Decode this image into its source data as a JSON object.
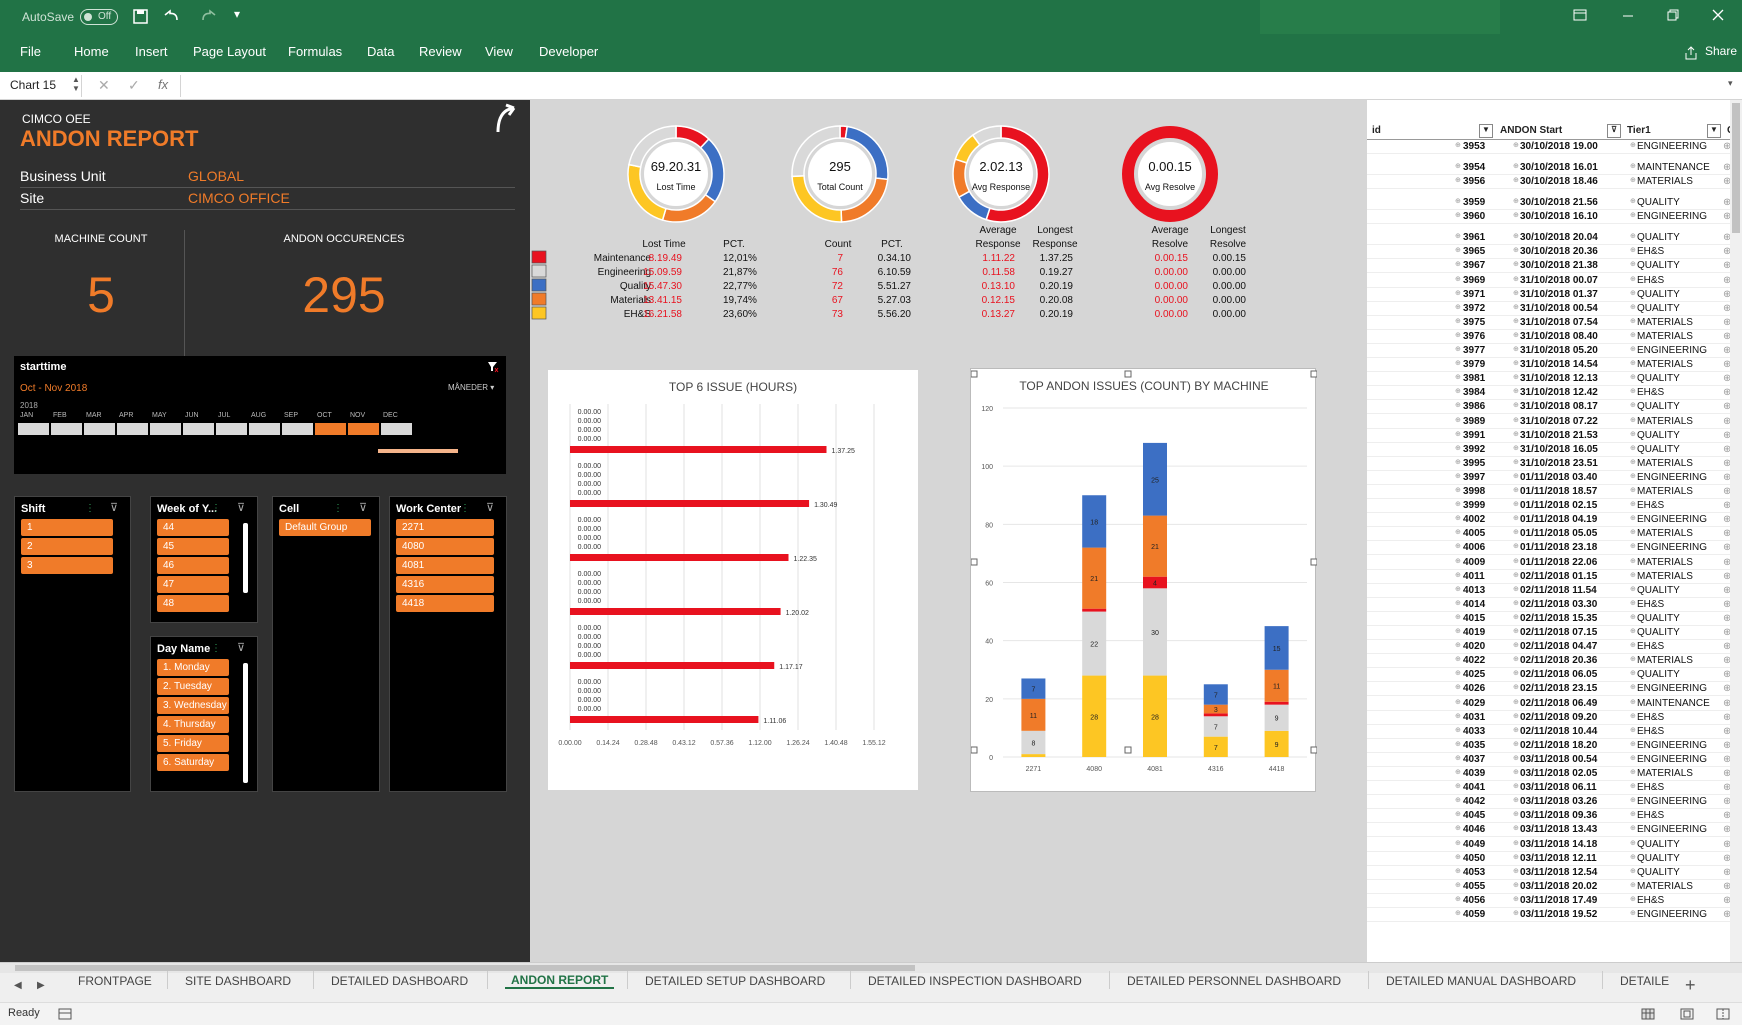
{
  "title_bar": {
    "autosave": "AutoSave",
    "autosave_state": "Off"
  },
  "ribbon": {
    "tabs": [
      "File",
      "Home",
      "Insert",
      "Page Layout",
      "Formulas",
      "Data",
      "Review",
      "View",
      "Developer"
    ],
    "share": "Share"
  },
  "formula_bar": {
    "name_box": "Chart 15",
    "fx": "fx"
  },
  "dashboard": {
    "subtitle": "CIMCO OEE",
    "title": "ANDON REPORT",
    "bu_label": "Business Unit",
    "bu_value": "GLOBAL",
    "site_label": "Site",
    "site_value": "CIMCO OFFICE",
    "machine_label": "MACHINE COUNT",
    "machine_value": "5",
    "andon_label": "ANDON OCCURENCES",
    "andon_value": "295"
  },
  "timeline": {
    "title": "starttime",
    "range": "Oct - Nov 2018",
    "period": "MÅNEDER",
    "year": "2018",
    "months": [
      "JAN",
      "FEB",
      "MAR",
      "APR",
      "MAY",
      "JUN",
      "JUL",
      "AUG",
      "SEP",
      "OCT",
      "NOV",
      "DEC"
    ]
  },
  "slicers": {
    "shift": {
      "title": "Shift",
      "items": [
        "1",
        "2",
        "3"
      ]
    },
    "week": {
      "title": "Week of Y...",
      "items": [
        "44",
        "45",
        "46",
        "47",
        "48"
      ]
    },
    "cell": {
      "title": "Cell",
      "items": [
        "Default Group"
      ]
    },
    "workcenter": {
      "title": "Work Center",
      "items": [
        "2271",
        "4080",
        "4081",
        "4316",
        "4418"
      ]
    },
    "day": {
      "title": "Day Name",
      "items": [
        "1. Monday",
        "2. Tuesday",
        "3. Wednesday",
        "4. Thursday",
        "5. Friday",
        "6. Saturday"
      ]
    }
  },
  "donuts": [
    {
      "value": "69.20.31",
      "label": "Lost Time",
      "segments": [
        12.01,
        21.87,
        22.77,
        19.74,
        23.6
      ]
    },
    {
      "value": "295",
      "label": "Total Count",
      "segments": [
        2.4,
        25.8,
        24.4,
        22.7,
        24.7
      ]
    },
    {
      "value": "2.02.13",
      "label": "Avg Response",
      "segments": [
        55,
        10,
        12,
        13,
        10
      ]
    },
    {
      "value": "0.00.15",
      "label": "Avg Resolve",
      "segments": [
        100,
        0,
        0,
        0,
        0
      ]
    }
  ],
  "kpi_headers": {
    "lost_time": "Lost Time",
    "pct": "PCT.",
    "count": "Count",
    "pct2": "PCT.",
    "avg_resp_1": "Average",
    "avg_resp_2": "Response",
    "long_resp_1": "Longest",
    "long_resp_2": "Response",
    "avg_res_1": "Average",
    "avg_res_2": "Resolve",
    "long_res_1": "Longest",
    "long_res_2": "Resolve"
  },
  "kpi_rows": [
    {
      "name": "Maintenance",
      "lost": "8.19.49",
      "pct": "12,01%",
      "count": "7",
      "pct2": "0.34.10",
      "avg_resp": "1.11.22",
      "long_resp": "1.37.25",
      "avg_res": "0.00.15",
      "long_res": "0.00.15",
      "color": "#e8121f"
    },
    {
      "name": "Engineering",
      "lost": "15.09.59",
      "pct": "21,87%",
      "count": "76",
      "pct2": "6.10.59",
      "avg_resp": "0.11.58",
      "long_resp": "0.19.27",
      "avg_res": "0.00.00",
      "long_res": "0.00.00",
      "color": "#d9d9d9"
    },
    {
      "name": "Quality",
      "lost": "15.47.30",
      "pct": "22,77%",
      "count": "72",
      "pct2": "5.51.27",
      "avg_resp": "0.13.10",
      "long_resp": "0.20.19",
      "avg_res": "0.00.00",
      "long_res": "0.00.00",
      "color": "#3c6fc4"
    },
    {
      "name": "Materials",
      "lost": "13.41.15",
      "pct": "19,74%",
      "count": "67",
      "pct2": "5.27.03",
      "avg_resp": "0.12.15",
      "long_resp": "0.20.08",
      "avg_res": "0.00.00",
      "long_res": "0.00.00",
      "color": "#f07b29"
    },
    {
      "name": "EH&S",
      "lost": "16.21.58",
      "pct": "23,60%",
      "count": "73",
      "pct2": "5.56.20",
      "avg_resp": "0.13.27",
      "long_resp": "0.20.19",
      "avg_res": "0.00.00",
      "long_res": "0.00.00",
      "color": "#fdc623"
    }
  ],
  "chart_data": [
    {
      "type": "bar",
      "title": "TOP 6 ISSUE (HOURS)",
      "orientation": "horizontal",
      "bar_labels": [
        "1.37.25",
        "1.30.49",
        "1.22.35",
        "1.20.02",
        "1.17.17",
        "1.11.06"
      ],
      "values_hours": [
        1.62,
        1.51,
        1.38,
        1.33,
        1.29,
        1.19
      ],
      "zero_label": "0.00.00",
      "xticks": [
        "0.00.00",
        "0.14.24",
        "0.28.48",
        "0.43.12",
        "0.57.36",
        "1.12.00",
        "1.26.24",
        "1.40.48",
        "1.55.12"
      ],
      "xlim_hours": [
        0,
        1.92
      ],
      "color": "#e8121f"
    },
    {
      "type": "bar",
      "stacked": true,
      "title": "TOP ANDON ISSUES (COUNT) BY MACHINE",
      "categories": [
        "2271",
        "4080",
        "4081",
        "4316",
        "4418"
      ],
      "ylim": [
        0,
        120
      ],
      "yticks": [
        "0",
        "20",
        "40",
        "60",
        "80",
        "100",
        "120"
      ],
      "series": [
        {
          "color": "#fdc623",
          "values": [
            1,
            28,
            28,
            7,
            9
          ]
        },
        {
          "color": "#d9d9d9",
          "values": [
            8,
            22,
            30,
            7,
            9
          ]
        },
        {
          "color": "#e8121f",
          "values": [
            0,
            1,
            4,
            1,
            1
          ]
        },
        {
          "color": "#f07b29",
          "values": [
            11,
            21,
            21,
            3,
            11
          ]
        },
        {
          "color": "#3c6fc4",
          "values": [
            7,
            18,
            25,
            7,
            15
          ]
        }
      ]
    }
  ],
  "table": {
    "headers": [
      "id",
      "ANDON Start",
      "Tier1",
      "C"
    ],
    "rows": [
      [
        "3953",
        "30/10/2018 19.00",
        "ENGINEERING"
      ],
      [
        "3954",
        "30/10/2018 16.01",
        "MAINTENANCE"
      ],
      [
        "3956",
        "30/10/2018 18.46",
        "MATERIALS"
      ],
      [
        "3959",
        "30/10/2018 21.56",
        "QUALITY"
      ],
      [
        "3960",
        "30/10/2018 16.10",
        "ENGINEERING"
      ],
      [
        "3961",
        "30/10/2018 20.04",
        "QUALITY"
      ],
      [
        "3965",
        "30/10/2018 20.36",
        "EH&S"
      ],
      [
        "3967",
        "30/10/2018 21.38",
        "QUALITY"
      ],
      [
        "3969",
        "31/10/2018 00.07",
        "EH&S"
      ],
      [
        "3971",
        "31/10/2018 01.37",
        "QUALITY"
      ],
      [
        "3972",
        "31/10/2018 00.54",
        "QUALITY"
      ],
      [
        "3975",
        "31/10/2018 07.54",
        "MATERIALS"
      ],
      [
        "3976",
        "31/10/2018 08.40",
        "MATERIALS"
      ],
      [
        "3977",
        "31/10/2018 05.20",
        "ENGINEERING"
      ],
      [
        "3979",
        "31/10/2018 14.54",
        "MATERIALS"
      ],
      [
        "3981",
        "31/10/2018 12.13",
        "QUALITY"
      ],
      [
        "3984",
        "31/10/2018 12.42",
        "EH&S"
      ],
      [
        "3986",
        "31/10/2018 08.17",
        "QUALITY"
      ],
      [
        "3989",
        "31/10/2018 07.22",
        "MATERIALS"
      ],
      [
        "3991",
        "31/10/2018 21.53",
        "QUALITY"
      ],
      [
        "3992",
        "31/10/2018 16.05",
        "QUALITY"
      ],
      [
        "3995",
        "31/10/2018 23.51",
        "MATERIALS"
      ],
      [
        "3997",
        "01/11/2018 03.40",
        "ENGINEERING"
      ],
      [
        "3998",
        "01/11/2018 18.57",
        "MATERIALS"
      ],
      [
        "3999",
        "01/11/2018 02.15",
        "EH&S"
      ],
      [
        "4002",
        "01/11/2018 04.19",
        "ENGINEERING"
      ],
      [
        "4005",
        "01/11/2018 05.05",
        "MATERIALS"
      ],
      [
        "4006",
        "01/11/2018 23.18",
        "ENGINEERING"
      ],
      [
        "4009",
        "01/11/2018 22.06",
        "MATERIALS"
      ],
      [
        "4011",
        "02/11/2018 01.15",
        "MATERIALS"
      ],
      [
        "4013",
        "02/11/2018 11.54",
        "QUALITY"
      ],
      [
        "4014",
        "02/11/2018 03.30",
        "EH&S"
      ],
      [
        "4015",
        "02/11/2018 15.35",
        "QUALITY"
      ],
      [
        "4019",
        "02/11/2018 07.15",
        "QUALITY"
      ],
      [
        "4020",
        "02/11/2018 04.47",
        "EH&S"
      ],
      [
        "4022",
        "02/11/2018 20.36",
        "MATERIALS"
      ],
      [
        "4025",
        "02/11/2018 06.05",
        "QUALITY"
      ],
      [
        "4026",
        "02/11/2018 23.15",
        "ENGINEERING"
      ],
      [
        "4029",
        "02/11/2018 06.49",
        "MAINTENANCE"
      ],
      [
        "4031",
        "02/11/2018 09.20",
        "EH&S"
      ],
      [
        "4033",
        "02/11/2018 10.44",
        "EH&S"
      ],
      [
        "4035",
        "02/11/2018 18.20",
        "ENGINEERING"
      ],
      [
        "4037",
        "03/11/2018 00.54",
        "ENGINEERING"
      ],
      [
        "4039",
        "03/11/2018 02.05",
        "MATERIALS"
      ],
      [
        "4041",
        "03/11/2018 06.11",
        "EH&S"
      ],
      [
        "4042",
        "03/11/2018 03.26",
        "ENGINEERING"
      ],
      [
        "4045",
        "03/11/2018 09.36",
        "EH&S"
      ],
      [
        "4046",
        "03/11/2018 13.43",
        "ENGINEERING"
      ],
      [
        "4049",
        "03/11/2018 14.18",
        "QUALITY"
      ],
      [
        "4050",
        "03/11/2018 12.11",
        "QUALITY"
      ],
      [
        "4053",
        "03/11/2018 12.54",
        "QUALITY"
      ],
      [
        "4055",
        "03/11/2018 20.02",
        "MATERIALS"
      ],
      [
        "4056",
        "03/11/2018 17.49",
        "EH&S"
      ],
      [
        "4059",
        "03/11/2018 19.52",
        "ENGINEERING"
      ]
    ]
  },
  "sheet_tabs": [
    "FRONTPAGE",
    "SITE DASHBOARD",
    "DETAILED DASHBOARD",
    "ANDON REPORT",
    "DETAILED SETUP DASHBOARD",
    "DETAILED INSPECTION DASHBOARD",
    "DETAILED PERSONNEL DASHBOARD",
    "DETAILED MANUAL DASHBOARD",
    "DETAILE"
  ],
  "active_tab": "ANDON REPORT",
  "status": {
    "ready": "Ready"
  }
}
